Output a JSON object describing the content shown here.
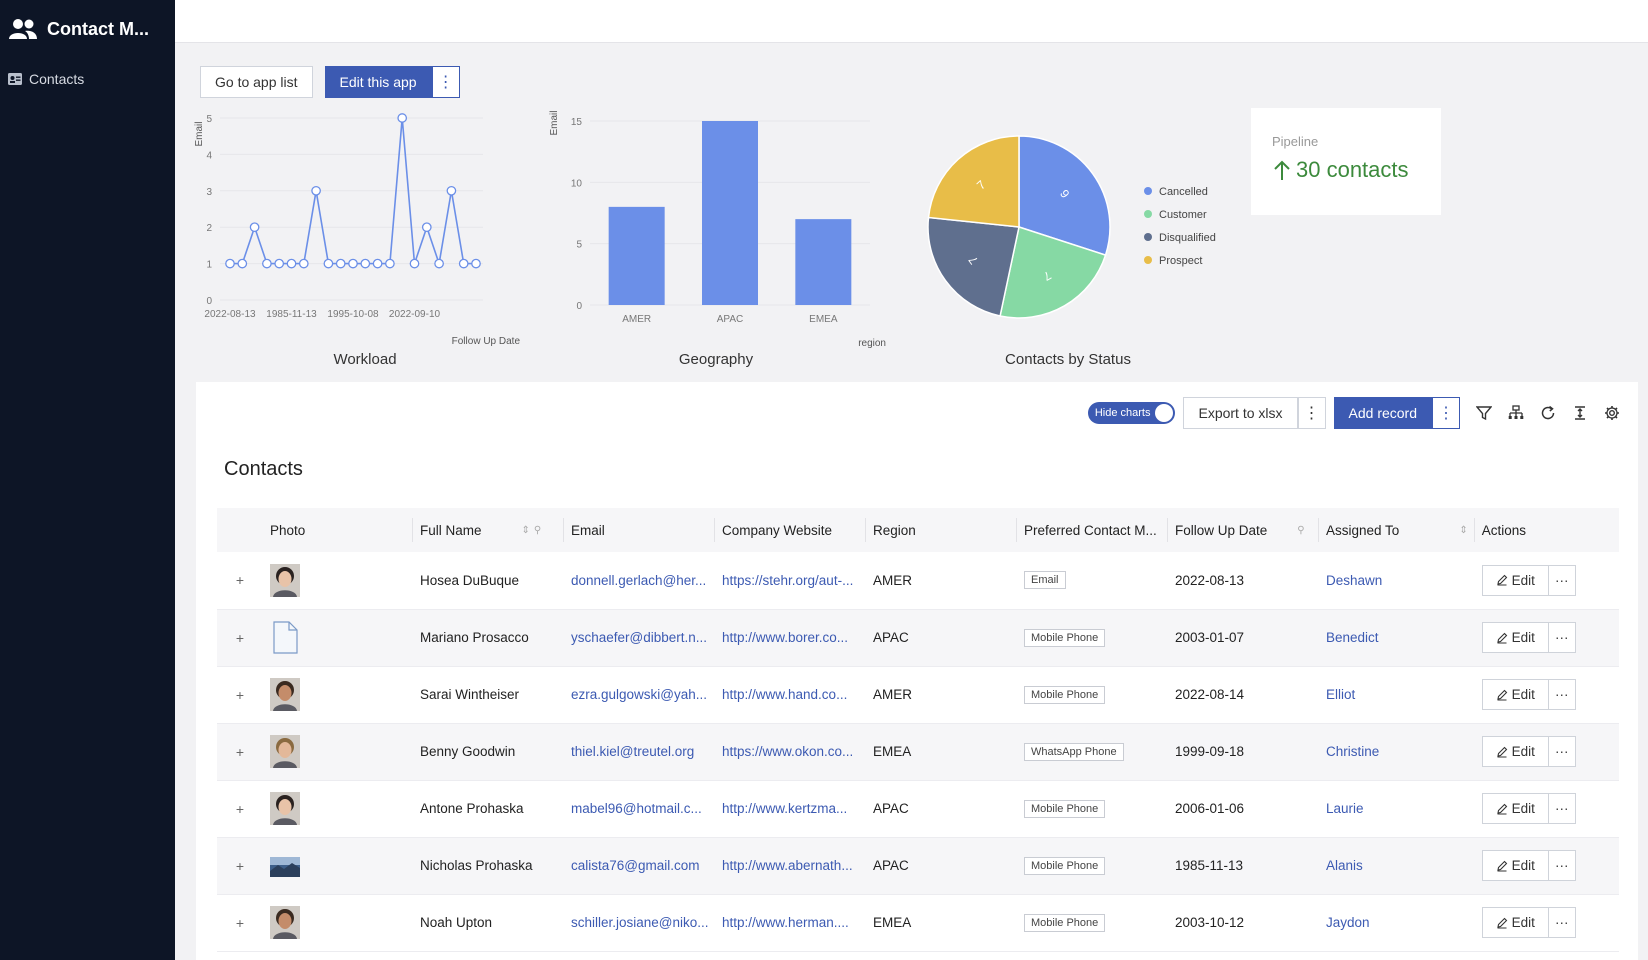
{
  "app": {
    "title": "Contact M...",
    "nav": [
      {
        "label": "Contacts"
      }
    ]
  },
  "buttons": {
    "go_to_app_list": "Go to app list",
    "edit_this_app": "Edit this app",
    "kebab": "⋮"
  },
  "pipeline": {
    "label": "Pipeline",
    "value": "30 contacts",
    "color": "#3c8a3c"
  },
  "chart_data": [
    {
      "type": "line",
      "title": "Workload",
      "xlabel": "Follow Up Date",
      "ylabel": "Email",
      "x_tick_labels": [
        "2022-08-13",
        "1985-11-13",
        "1995-10-08",
        "2022-09-10"
      ],
      "values": [
        1,
        1,
        2,
        1,
        1,
        1,
        1,
        3,
        1,
        1,
        1,
        1,
        1,
        1,
        5,
        1,
        2,
        1,
        3,
        1,
        1
      ],
      "ylim": [
        0,
        5
      ],
      "y_ticks": [
        0,
        1,
        2,
        3,
        4,
        5
      ],
      "color": "#6b8fe8"
    },
    {
      "type": "bar",
      "title": "Geography",
      "xlabel": "region",
      "ylabel": "Email",
      "categories": [
        "AMER",
        "APAC",
        "EMEA"
      ],
      "values": [
        8,
        15,
        7
      ],
      "ylim": [
        0,
        15
      ],
      "y_ticks": [
        0,
        5,
        10,
        15
      ],
      "color": "#6b8fe8"
    },
    {
      "type": "pie",
      "title": "Contacts by Status",
      "slices": [
        {
          "label": "Cancelled",
          "value": 9,
          "color": "#6b8fe8"
        },
        {
          "label": "Customer",
          "value": 7,
          "color": "#86d9a4"
        },
        {
          "label": "Disqualified",
          "value": 7,
          "color": "#5f6f8e"
        },
        {
          "label": "Prospect",
          "value": 7,
          "color": "#e8bd48"
        }
      ],
      "legend": "right"
    }
  ],
  "toolbar": {
    "hide_charts": "Hide charts",
    "export": "Export to xlsx",
    "add_record": "Add record"
  },
  "table": {
    "title": "Contacts",
    "columns": [
      "Photo",
      "Full Name",
      "Email",
      "Company Website",
      "Region",
      "Preferred Contact M...",
      "Follow Up Date",
      "Assigned To",
      "Actions"
    ],
    "edit_label": "Edit",
    "more_label": "···",
    "expand_label": "+",
    "rows": [
      {
        "photo": "portrait",
        "name": "Hosea DuBuque",
        "email": "donnell.gerlach@her...",
        "website": "https://stehr.org/aut-...",
        "region": "AMER",
        "contact": "Email",
        "date": "2022-08-13",
        "assigned": "Deshawn"
      },
      {
        "photo": "file",
        "name": "Mariano Prosacco",
        "email": "yschaefer@dibbert.n...",
        "website": "http://www.borer.co...",
        "region": "APAC",
        "contact": "Mobile Phone",
        "date": "2003-01-07",
        "assigned": "Benedict"
      },
      {
        "photo": "portrait",
        "name": "Sarai Wintheiser",
        "email": "ezra.gulgowski@yah...",
        "website": "http://www.hand.co...",
        "region": "AMER",
        "contact": "Mobile Phone",
        "date": "2022-08-14",
        "assigned": "Elliot"
      },
      {
        "photo": "portrait",
        "name": "Benny Goodwin",
        "email": "thiel.kiel@treutel.org",
        "website": "https://www.okon.co...",
        "region": "EMEA",
        "contact": "WhatsApp Phone",
        "date": "1999-09-18",
        "assigned": "Christine"
      },
      {
        "photo": "portrait",
        "name": "Antone Prohaska",
        "email": "mabel96@hotmail.c...",
        "website": "http://www.kertzma...",
        "region": "APAC",
        "contact": "Mobile Phone",
        "date": "2006-01-06",
        "assigned": "Laurie"
      },
      {
        "photo": "landscape",
        "name": "Nicholas Prohaska",
        "email": "calista76@gmail.com",
        "website": "http://www.abernath...",
        "region": "APAC",
        "contact": "Mobile Phone",
        "date": "1985-11-13",
        "assigned": "Alanis"
      },
      {
        "photo": "portrait",
        "name": "Noah Upton",
        "email": "schiller.josiane@niko...",
        "website": "http://www.herman....",
        "region": "EMEA",
        "contact": "Mobile Phone",
        "date": "2003-10-12",
        "assigned": "Jaydon"
      }
    ]
  }
}
